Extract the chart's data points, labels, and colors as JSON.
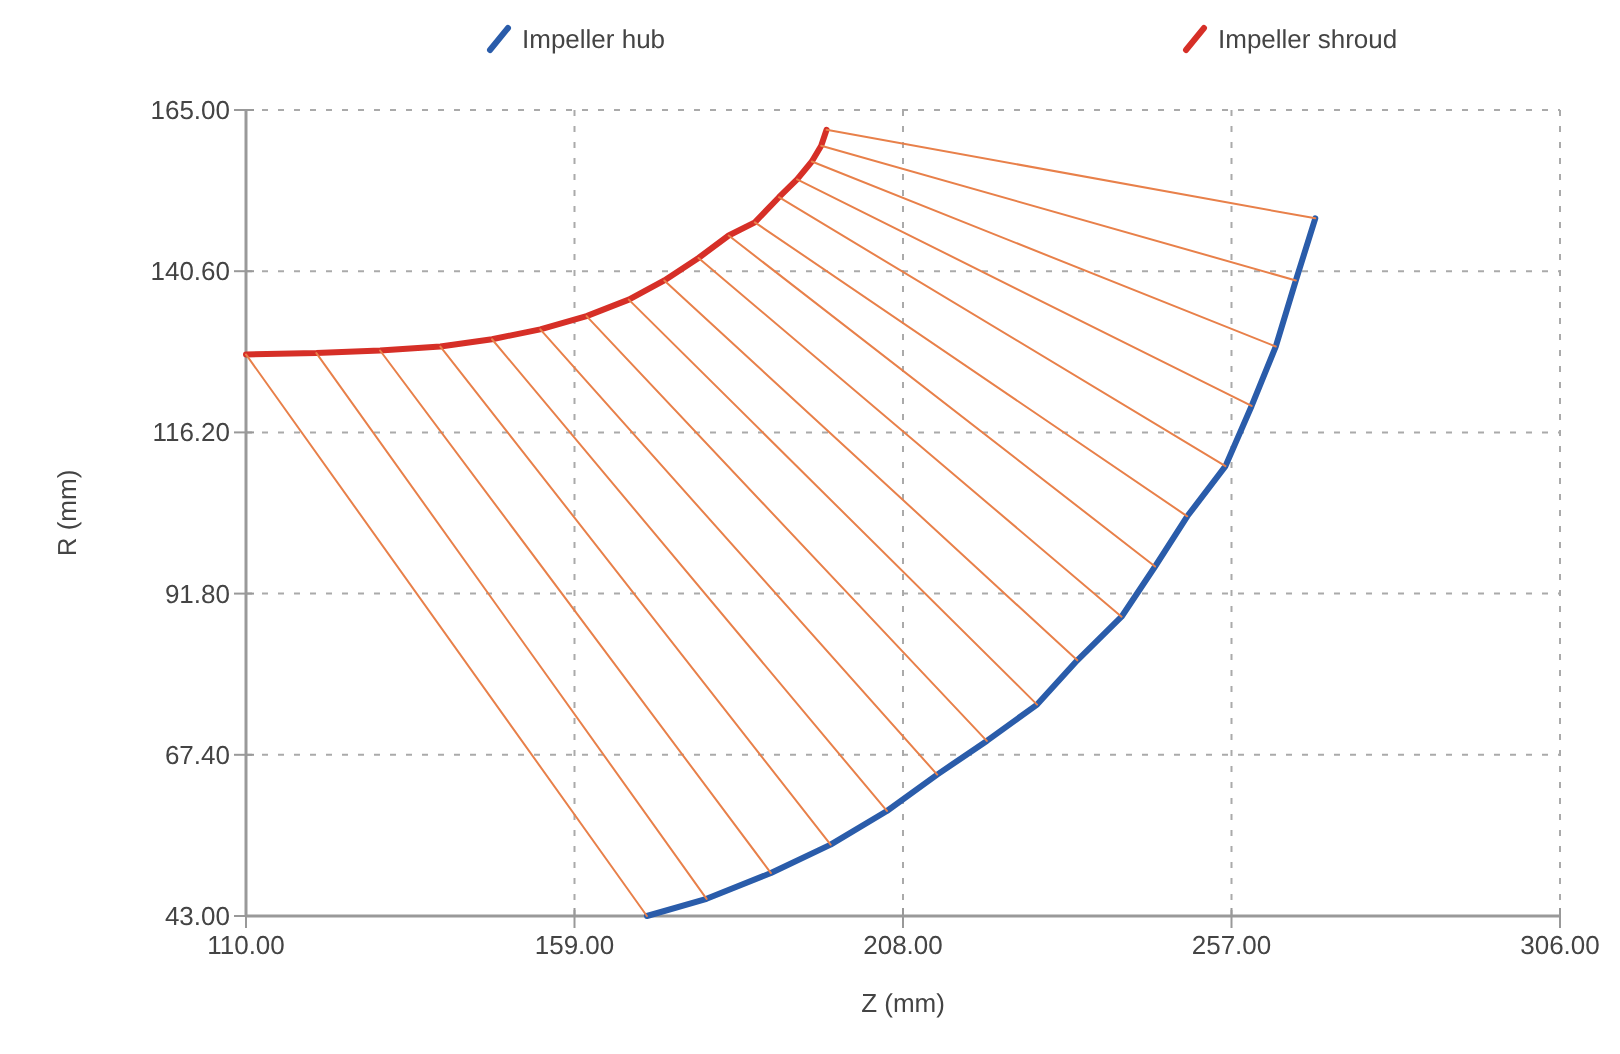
{
  "chart_data": {
    "type": "line",
    "xlabel": "Z (mm)",
    "ylabel": "R (mm)",
    "legend": "top",
    "grid": true,
    "line_style": "solid",
    "marker": "none",
    "xlim": [
      110,
      306
    ],
    "xticks": [
      {
        "value": 110,
        "label": "110.00"
      },
      {
        "value": 159,
        "label": "159.00"
      },
      {
        "value": 208,
        "label": "208.00"
      },
      {
        "value": 257,
        "label": "257.00"
      },
      {
        "value": 306,
        "label": "306.00"
      }
    ],
    "ylim": [
      43,
      165
    ],
    "yticks": [
      {
        "value": 43,
        "label": "43.00"
      },
      {
        "value": 67.4,
        "label": "67.40"
      },
      {
        "value": 91.8,
        "label": "91.80"
      },
      {
        "value": 116.2,
        "label": "116.20"
      },
      {
        "value": 140.6,
        "label": "140.60"
      },
      {
        "value": 165,
        "label": "165.00"
      }
    ],
    "series": [
      {
        "name": "Impeller hub",
        "color": "#2a5caa",
        "x": [
          169.8,
          178.7,
          188.3,
          197.2,
          205.6,
          213.1,
          220.5,
          228.0,
          234.0,
          240.6,
          245.6,
          250.4,
          256.1,
          260.0,
          263.6,
          266.6,
          269.5
        ],
        "values": [
          43.0,
          45.6,
          49.5,
          53.8,
          58.9,
          64.4,
          69.5,
          75.0,
          81.7,
          88.3,
          95.9,
          103.5,
          111.1,
          120.2,
          129.2,
          139.2,
          148.6
        ]
      },
      {
        "name": "Impeller shroud",
        "color": "#d62f27",
        "x": [
          110.0,
          120.5,
          130.0,
          139.0,
          146.7,
          153.9,
          160.8,
          167.1,
          172.4,
          177.5,
          182.0,
          185.9,
          189.5,
          192.2,
          194.4,
          195.8,
          196.6
        ],
        "values": [
          128.0,
          128.2,
          128.6,
          129.2,
          130.3,
          131.8,
          133.8,
          136.3,
          139.2,
          142.6,
          146.0,
          148.0,
          151.8,
          154.5,
          157.2,
          159.6,
          162.0
        ]
      },
      {
        "color": "#e8804a",
        "x": [
          110.0,
          169.8
        ],
        "values": [
          128.0,
          43.0
        ]
      },
      {
        "color": "#e8804a",
        "x": [
          120.5,
          178.7
        ],
        "values": [
          128.2,
          45.6
        ]
      },
      {
        "color": "#e8804a",
        "x": [
          130.0,
          188.3
        ],
        "values": [
          128.6,
          49.5
        ]
      },
      {
        "color": "#e8804a",
        "x": [
          139.0,
          197.2
        ],
        "values": [
          129.2,
          53.8
        ]
      },
      {
        "color": "#e8804a",
        "x": [
          146.7,
          205.6
        ],
        "values": [
          130.3,
          58.9
        ]
      },
      {
        "color": "#e8804a",
        "x": [
          153.9,
          213.1
        ],
        "values": [
          131.8,
          64.4
        ]
      },
      {
        "color": "#e8804a",
        "x": [
          160.8,
          220.5
        ],
        "values": [
          133.8,
          69.5
        ]
      },
      {
        "color": "#e8804a",
        "x": [
          167.1,
          228.0
        ],
        "values": [
          136.3,
          75.0
        ]
      },
      {
        "color": "#e8804a",
        "x": [
          172.4,
          234.0
        ],
        "values": [
          139.2,
          81.7
        ]
      },
      {
        "color": "#e8804a",
        "x": [
          177.5,
          240.6
        ],
        "values": [
          142.6,
          88.3
        ]
      },
      {
        "color": "#e8804a",
        "x": [
          182.0,
          245.6
        ],
        "values": [
          146.0,
          95.9
        ]
      },
      {
        "color": "#e8804a",
        "x": [
          185.9,
          250.4
        ],
        "values": [
          148.0,
          103.5
        ]
      },
      {
        "color": "#e8804a",
        "x": [
          189.5,
          256.1
        ],
        "values": [
          151.8,
          111.1
        ]
      },
      {
        "color": "#e8804a",
        "x": [
          192.2,
          260.0
        ],
        "values": [
          154.5,
          120.2
        ]
      },
      {
        "color": "#e8804a",
        "x": [
          194.4,
          263.6
        ],
        "values": [
          157.2,
          129.2
        ]
      },
      {
        "color": "#e8804a",
        "x": [
          195.8,
          266.6
        ],
        "values": [
          159.6,
          139.2
        ]
      },
      {
        "color": "#e8804a",
        "x": [
          196.6,
          269.5
        ],
        "values": [
          162.0,
          148.6
        ]
      }
    ]
  }
}
